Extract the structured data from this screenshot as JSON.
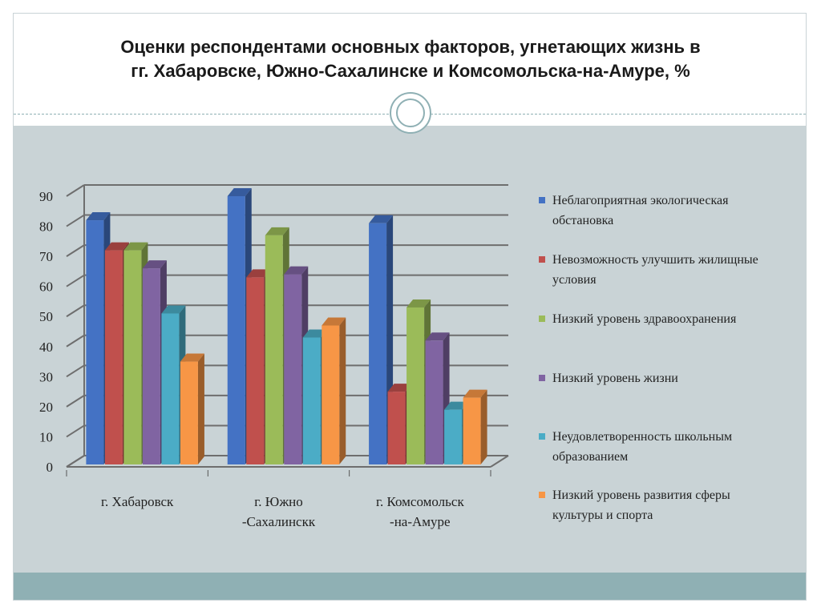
{
  "slide": {
    "title_lines": [
      "Оценки респондентами основных факторов, угнетающих  жизнь в",
      "гг. Хабаровске, Южно-Сахалинске и Комсомольска-на-Амуре, %"
    ]
  },
  "colors": {
    "background": "#c9d3d6",
    "band": "#8fb0b4",
    "grid": "#6e6e6e"
  },
  "chart_data": {
    "type": "bar",
    "title": "",
    "xlabel": "",
    "ylabel": "",
    "ylim": [
      0,
      90
    ],
    "yticks": [
      "0",
      "10",
      "20",
      "30",
      "40",
      "50",
      "60",
      "70",
      "80",
      "90"
    ],
    "categories": [
      {
        "lines": [
          "г. Хабаровск"
        ]
      },
      {
        "lines": [
          "г. Южно",
          "-Сахалинскк"
        ]
      },
      {
        "lines": [
          "г. Комсомольск",
          "-на-Амуре"
        ]
      }
    ],
    "series": [
      {
        "name": "Неблагоприятная экологическая обстановка",
        "name_lines": [
          "Неблагоприятная экологическая",
          "обстановка"
        ],
        "color": "#4472c4",
        "values": [
          82,
          90,
          81
        ]
      },
      {
        "name": "Невозможность улучшить жилищные условия",
        "name_lines": [
          "Невозможность улучшить жилищные",
          "условия"
        ],
        "color": "#c0504d",
        "values": [
          72,
          63,
          25
        ]
      },
      {
        "name": "Низкий уровень здравоохранения",
        "name_lines": [
          "Низкий уровень здравоохранения"
        ],
        "color": "#9bbb59",
        "values": [
          72,
          77,
          53
        ]
      },
      {
        "name": "Низкий уровень жизни",
        "name_lines": [
          "Низкий уровень жизни"
        ],
        "color": "#8064a2",
        "values": [
          66,
          64,
          42
        ]
      },
      {
        "name": "Неудовлетворенность школьным образованием",
        "name_lines": [
          "Неудовлетворенность школьным",
          "образованием"
        ],
        "color": "#4bacc6",
        "values": [
          51,
          43,
          19
        ]
      },
      {
        "name": "Низкий уровень развития сферы культуры и спорта",
        "name_lines": [
          "Низкий уровень развития сферы",
          "культуры и спорта"
        ],
        "color": "#f79646",
        "values": [
          35,
          47,
          23
        ]
      }
    ],
    "grid": true,
    "legend": "right"
  }
}
